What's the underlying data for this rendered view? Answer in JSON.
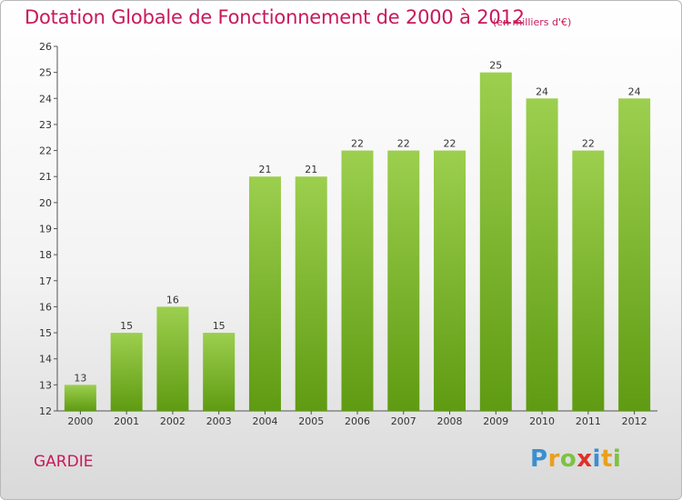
{
  "header": {
    "title": "Dotation Globale de Fonctionnement de 2000 à 2012",
    "unit": "(en milliers d'€)"
  },
  "footer": {
    "commune": "GARDIE",
    "logo": {
      "text": "Proxiti",
      "letters": [
        {
          "char": "P",
          "color": "#3a8fd1"
        },
        {
          "char": "r",
          "color": "#e8a020"
        },
        {
          "char": "o",
          "color": "#7cc242"
        },
        {
          "char": "x",
          "color": "#e0302a"
        },
        {
          "char": "i",
          "color": "#3a8fd1"
        },
        {
          "char": "t",
          "color": "#e8a020"
        },
        {
          "char": "i",
          "color": "#7cc242"
        }
      ]
    }
  },
  "chart_data": {
    "type": "bar",
    "title": "Dotation Globale de Fonctionnement de 2000 à 2012",
    "subtitle": "(en milliers d'€)",
    "categories": [
      "2000",
      "2001",
      "2002",
      "2003",
      "2004",
      "2005",
      "2006",
      "2007",
      "2008",
      "2009",
      "2010",
      "2011",
      "2012"
    ],
    "values": [
      13,
      15,
      16,
      15,
      21,
      21,
      22,
      22,
      22,
      25,
      24,
      22,
      24
    ],
    "ylim": [
      12,
      26
    ],
    "yticks": [
      12,
      13,
      14,
      15,
      16,
      17,
      18,
      19,
      20,
      21,
      22,
      23,
      24,
      25,
      26
    ],
    "grid": false,
    "bar_color_top": "#9ccf4e",
    "bar_color_bottom": "#5f9b12",
    "axis_color": "#555555"
  }
}
